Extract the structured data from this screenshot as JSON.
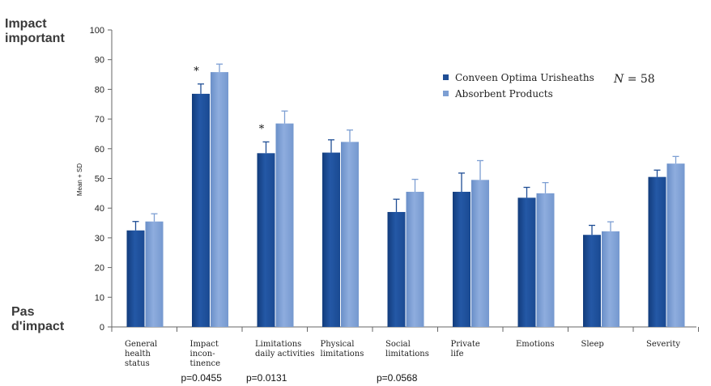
{
  "labels": {
    "impact_top": [
      "Impact",
      "important"
    ],
    "impact_bottom": [
      "Pas",
      "d'impact"
    ],
    "n_label": "N",
    "n_value": " = 58",
    "ylabel": "Mean + SD"
  },
  "p_values": [
    {
      "category_index": 1,
      "text": "p=0.0455"
    },
    {
      "category_index": 2,
      "text": "p=0.0131"
    },
    {
      "category_index": 4,
      "text": "p=0.0568"
    }
  ],
  "significance_marker": "*",
  "chart_data": {
    "type": "bar",
    "categories": [
      [
        "General",
        "health",
        "status"
      ],
      [
        "Impact",
        "incon-",
        "tinence"
      ],
      [
        "Limitations",
        "daily activities"
      ],
      [
        "Physical",
        "limitations"
      ],
      [
        "Social",
        "limitations"
      ],
      [
        "Private",
        "life"
      ],
      [
        "Emotions"
      ],
      [
        "Sleep"
      ],
      [
        "Severity"
      ]
    ],
    "series": [
      {
        "name": "Conveen Optima Urisheaths",
        "values": [
          32.5,
          78.5,
          58.5,
          58.7,
          38.7,
          45.5,
          43.5,
          31.0,
          50.5
        ],
        "sd": [
          3.0,
          3.3,
          3.8,
          4.3,
          4.3,
          6.3,
          3.5,
          3.2,
          2.3
        ],
        "color": "#1f4e95"
      },
      {
        "name": "Absorbent Products",
        "values": [
          35.5,
          85.8,
          68.5,
          62.3,
          45.5,
          49.5,
          45.0,
          32.2,
          55.0
        ],
        "sd": [
          2.6,
          2.7,
          4.2,
          4.0,
          4.2,
          6.5,
          3.6,
          3.2,
          2.4
        ],
        "color": "#7d9fd3"
      }
    ],
    "significant_categories": [
      1,
      2
    ],
    "ylim": [
      0,
      100
    ],
    "yticks": [
      0,
      10,
      20,
      30,
      40,
      50,
      60,
      70,
      80,
      90,
      100
    ],
    "ylabel": "Mean + SD",
    "legend_placement": "top-right",
    "grid": false
  }
}
